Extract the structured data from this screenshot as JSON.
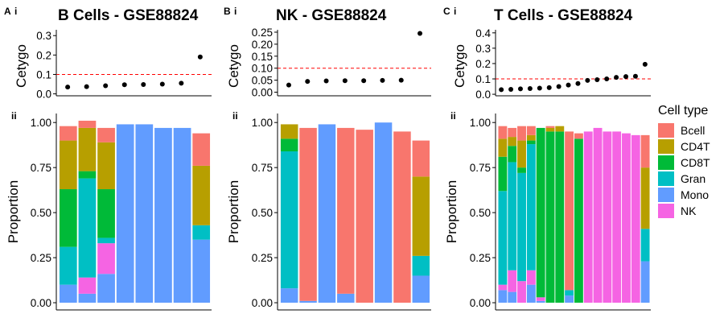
{
  "chart_data": [
    {
      "type": "scatter",
      "panel": "A",
      "sub": "i",
      "title": "B Cells - GSE88824",
      "ylabel": "Cetygo",
      "ylim": [
        -0.01,
        0.33
      ],
      "yticks": [
        "0.0",
        "0.1",
        "0.2",
        "0.3"
      ],
      "ytick_values": [
        0,
        0.1,
        0.2,
        0.3
      ],
      "threshold": 0.1,
      "values": [
        0.035,
        0.037,
        0.042,
        0.047,
        0.048,
        0.05,
        0.055,
        0.19
      ]
    },
    {
      "type": "bar",
      "panel": "A",
      "sub": "ii",
      "ylabel": "Proportion",
      "ylim": [
        -0.04,
        1.05
      ],
      "yticks": [
        "0.00",
        "0.25",
        "0.50",
        "0.75",
        "1.00"
      ],
      "ytick_values": [
        0,
        0.25,
        0.5,
        0.75,
        1.0
      ],
      "stack_order": [
        "Mono",
        "NK",
        "Gran",
        "CD8T",
        "CD4T",
        "Bcell"
      ],
      "samples": [
        {
          "Mono": 0.1,
          "NK": 0.0,
          "Gran": 0.21,
          "CD8T": 0.32,
          "CD4T": 0.27,
          "Bcell": 0.08
        },
        {
          "Mono": 0.05,
          "NK": 0.09,
          "Gran": 0.55,
          "CD8T": 0.04,
          "CD4T": 0.24,
          "Bcell": 0.04
        },
        {
          "Mono": 0.16,
          "NK": 0.17,
          "Gran": 0.03,
          "CD8T": 0.27,
          "CD4T": 0.26,
          "Bcell": 0.08
        },
        {
          "Mono": 0.99,
          "NK": 0.0,
          "Gran": 0.0,
          "CD8T": 0.0,
          "CD4T": 0.0,
          "Bcell": 0.0
        },
        {
          "Mono": 0.99,
          "NK": 0.0,
          "Gran": 0.0,
          "CD8T": 0.0,
          "CD4T": 0.0,
          "Bcell": 0.0
        },
        {
          "Mono": 0.97,
          "NK": 0.0,
          "Gran": 0.0,
          "CD8T": 0.0,
          "CD4T": 0.0,
          "Bcell": 0.0
        },
        {
          "Mono": 0.97,
          "NK": 0.0,
          "Gran": 0.0,
          "CD8T": 0.0,
          "CD4T": 0.0,
          "Bcell": 0.0
        },
        {
          "Mono": 0.35,
          "NK": 0.0,
          "Gran": 0.08,
          "CD8T": 0.0,
          "CD4T": 0.33,
          "Bcell": 0.18
        }
      ]
    },
    {
      "type": "scatter",
      "panel": "B",
      "sub": "i",
      "title": "NK - GSE88824",
      "ylabel": "Cetygo",
      "ylim": [
        -0.015,
        0.26
      ],
      "yticks": [
        "0.00",
        "0.05",
        "0.10",
        "0.15",
        "0.20",
        "0.25"
      ],
      "ytick_values": [
        0,
        0.05,
        0.1,
        0.15,
        0.2,
        0.25
      ],
      "threshold": 0.1,
      "values": [
        0.03,
        0.045,
        0.047,
        0.048,
        0.048,
        0.049,
        0.05,
        0.245
      ]
    },
    {
      "type": "bar",
      "panel": "B",
      "sub": "ii",
      "ylabel": "Proportion",
      "ylim": [
        -0.04,
        1.05
      ],
      "yticks": [
        "0.00",
        "0.25",
        "0.50",
        "0.75",
        "1.00"
      ],
      "ytick_values": [
        0,
        0.25,
        0.5,
        0.75,
        1.0
      ],
      "stack_order": [
        "Mono",
        "NK",
        "Gran",
        "CD8T",
        "CD4T",
        "Bcell"
      ],
      "samples": [
        {
          "Mono": 0.08,
          "NK": 0.0,
          "Gran": 0.76,
          "CD8T": 0.07,
          "CD4T": 0.08,
          "Bcell": 0.0
        },
        {
          "Mono": 0.01,
          "NK": 0.0,
          "Gran": 0.0,
          "CD8T": 0.0,
          "CD4T": 0.0,
          "Bcell": 0.96
        },
        {
          "Mono": 0.99,
          "NK": 0.0,
          "Gran": 0.0,
          "CD8T": 0.0,
          "CD4T": 0.0,
          "Bcell": 0.0
        },
        {
          "Mono": 0.05,
          "NK": 0.0,
          "Gran": 0.0,
          "CD8T": 0.0,
          "CD4T": 0.0,
          "Bcell": 0.92
        },
        {
          "Mono": 0.0,
          "NK": 0.0,
          "Gran": 0.0,
          "CD8T": 0.0,
          "CD4T": 0.0,
          "Bcell": 0.96
        },
        {
          "Mono": 1.0,
          "NK": 0.0,
          "Gran": 0.0,
          "CD8T": 0.0,
          "CD4T": 0.0,
          "Bcell": 0.0
        },
        {
          "Mono": 0.0,
          "NK": 0.0,
          "Gran": 0.0,
          "CD8T": 0.0,
          "CD4T": 0.0,
          "Bcell": 0.95
        },
        {
          "Mono": 0.15,
          "NK": 0.0,
          "Gran": 0.11,
          "CD8T": 0.0,
          "CD4T": 0.44,
          "Bcell": 0.2
        }
      ]
    },
    {
      "type": "scatter",
      "panel": "C",
      "sub": "i",
      "title": "T Cells - GSE88824",
      "ylabel": "Cetygo",
      "ylim": [
        -0.01,
        0.42
      ],
      "yticks": [
        "0.0",
        "0.1",
        "0.2",
        "0.3",
        "0.4"
      ],
      "ytick_values": [
        0,
        0.1,
        0.2,
        0.3,
        0.4
      ],
      "threshold": 0.1,
      "values": [
        0.03,
        0.032,
        0.035,
        0.037,
        0.04,
        0.043,
        0.05,
        0.06,
        0.07,
        0.09,
        0.095,
        0.1,
        0.11,
        0.115,
        0.117,
        0.195
      ]
    },
    {
      "type": "bar",
      "panel": "C",
      "sub": "ii",
      "ylabel": "Proportion",
      "ylim": [
        -0.04,
        1.05
      ],
      "yticks": [
        "0.00",
        "0.25",
        "0.50",
        "0.75",
        "1.00"
      ],
      "ytick_values": [
        0,
        0.25,
        0.5,
        0.75,
        1.0
      ],
      "stack_order": [
        "Mono",
        "NK",
        "Gran",
        "CD8T",
        "CD4T",
        "Bcell"
      ],
      "samples": [
        {
          "Mono": 0.07,
          "NK": 0.03,
          "Gran": 0.52,
          "CD8T": 0.19,
          "CD4T": 0.1,
          "Bcell": 0.07
        },
        {
          "Mono": 0.06,
          "NK": 0.12,
          "Gran": 0.6,
          "CD8T": 0.09,
          "CD4T": 0.05,
          "Bcell": 0.05
        },
        {
          "Mono": 0.0,
          "NK": 0.12,
          "Gran": 0.6,
          "CD8T": 0.03,
          "CD4T": 0.15,
          "Bcell": 0.08
        },
        {
          "Mono": 0.1,
          "NK": 0.08,
          "Gran": 0.7,
          "CD8T": 0.02,
          "CD4T": 0.03,
          "Bcell": 0.05
        },
        {
          "Mono": 0.01,
          "NK": 0.02,
          "Gran": 0.0,
          "CD8T": 0.94,
          "CD4T": 0.0,
          "Bcell": 0.0
        },
        {
          "Mono": 0.0,
          "NK": 0.0,
          "Gran": 0.0,
          "CD8T": 0.95,
          "CD4T": 0.02,
          "Bcell": 0.01
        },
        {
          "Mono": 0.0,
          "NK": 0.0,
          "Gran": 0.0,
          "CD8T": 0.95,
          "CD4T": 0.03,
          "Bcell": 0.0
        },
        {
          "Mono": 0.04,
          "NK": 0.0,
          "Gran": 0.03,
          "CD8T": 0.0,
          "CD4T": 0.0,
          "Bcell": 0.88
        },
        {
          "Mono": 0.0,
          "NK": 0.0,
          "Gran": 0.0,
          "CD8T": 0.91,
          "CD4T": 0.0,
          "Bcell": 0.03
        },
        {
          "Mono": 0.0,
          "NK": 0.95,
          "Gran": 0.0,
          "CD8T": 0.0,
          "CD4T": 0.0,
          "Bcell": 0.0
        },
        {
          "Mono": 0.0,
          "NK": 0.97,
          "Gran": 0.0,
          "CD8T": 0.0,
          "CD4T": 0.0,
          "Bcell": 0.0
        },
        {
          "Mono": 0.0,
          "NK": 0.95,
          "Gran": 0.0,
          "CD8T": 0.0,
          "CD4T": 0.0,
          "Bcell": 0.0
        },
        {
          "Mono": 0.0,
          "NK": 0.95,
          "Gran": 0.0,
          "CD8T": 0.0,
          "CD4T": 0.0,
          "Bcell": 0.0
        },
        {
          "Mono": 0.0,
          "NK": 0.94,
          "Gran": 0.0,
          "CD8T": 0.0,
          "CD4T": 0.0,
          "Bcell": 0.0
        },
        {
          "Mono": 0.0,
          "NK": 0.93,
          "Gran": 0.0,
          "CD8T": 0.0,
          "CD4T": 0.0,
          "Bcell": 0.0
        },
        {
          "Mono": 0.23,
          "NK": 0.0,
          "Gran": 0.18,
          "CD8T": 0.0,
          "CD4T": 0.34,
          "Bcell": 0.18
        }
      ]
    }
  ],
  "legend": {
    "title": "Cell type",
    "placement": "right",
    "items": [
      {
        "label": "Bcell",
        "color": "#F8766D"
      },
      {
        "label": "CD4T",
        "color": "#B79F00"
      },
      {
        "label": "CD8T",
        "color": "#00BA38"
      },
      {
        "label": "Gran",
        "color": "#00BFC4"
      },
      {
        "label": "Mono",
        "color": "#619CFF"
      },
      {
        "label": "NK",
        "color": "#F564E3"
      }
    ]
  },
  "threshold_color": "#FF0000",
  "point_color": "#000000"
}
